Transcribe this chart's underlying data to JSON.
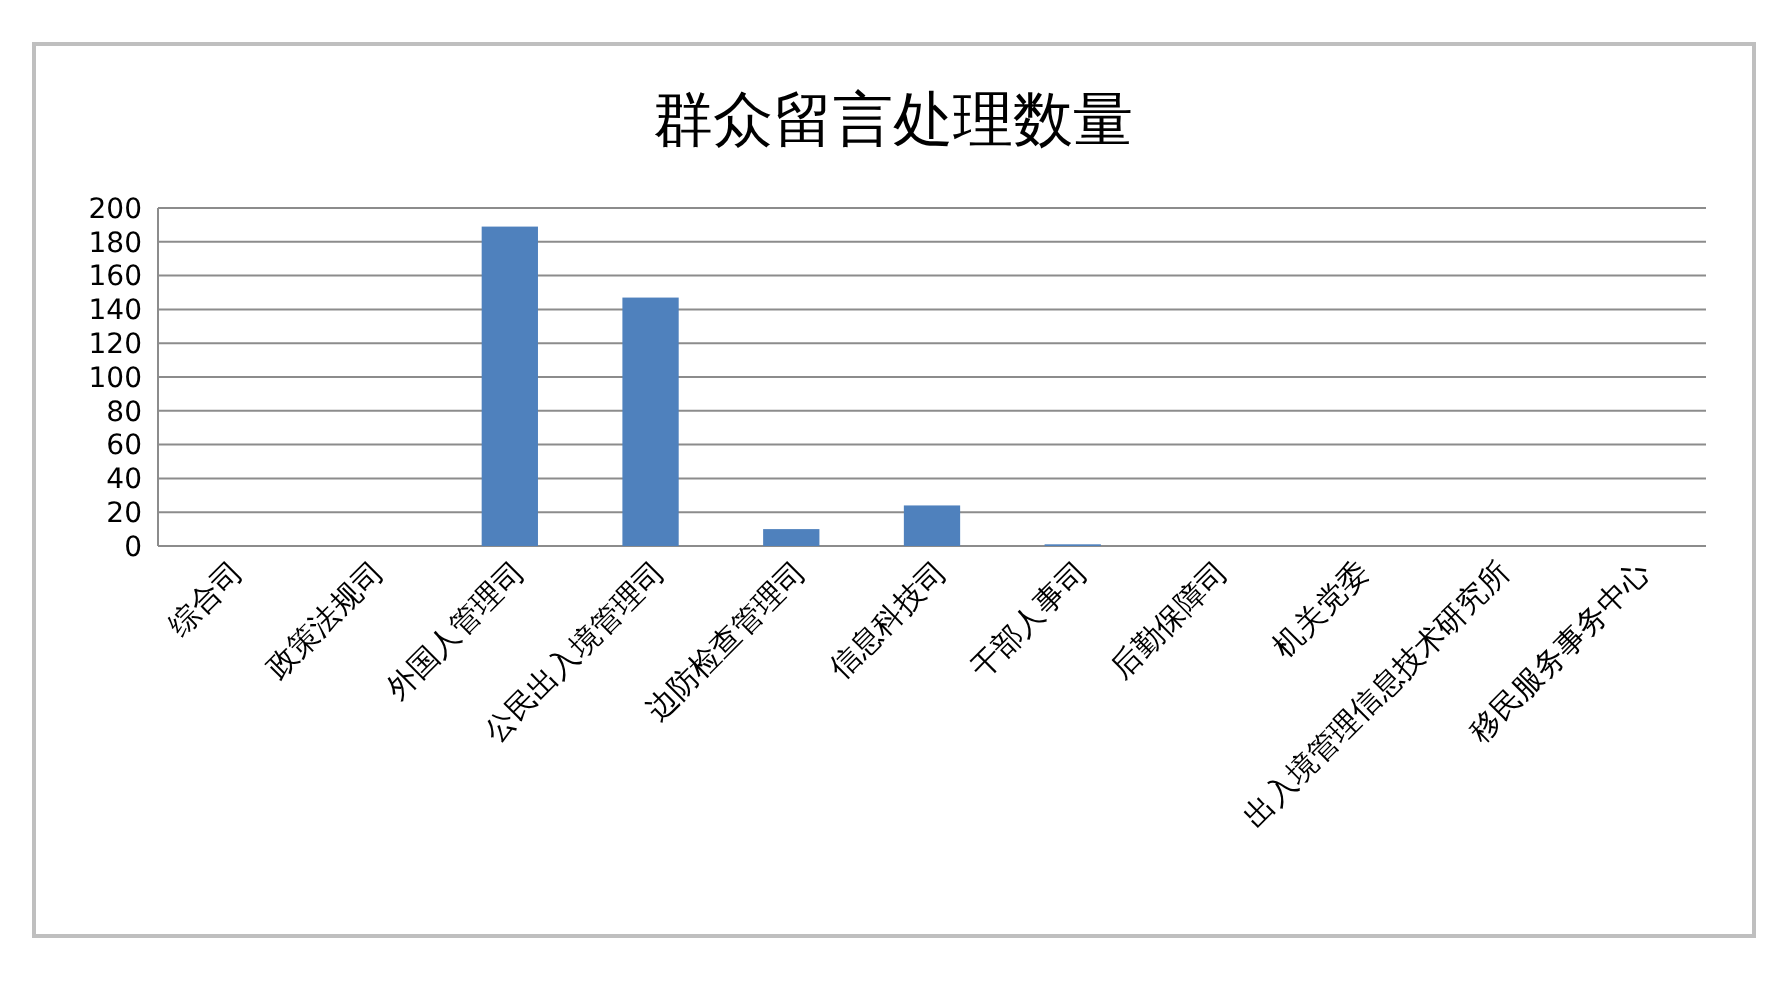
{
  "chart_data": {
    "type": "bar",
    "title": "群众留言处理数量",
    "categories": [
      "综合司",
      "政策法规司",
      "外国人管理司",
      "公民出入境管理司",
      "边防检查管理司",
      "信息科技司",
      "干部人事司",
      "后勤保障司",
      "机关党委",
      "出入境管理信息技术研究所",
      "移民服务事务中心"
    ],
    "values": [
      0,
      0,
      189,
      147,
      10,
      24,
      1,
      0,
      0,
      0,
      0
    ],
    "color": "#4f81bd",
    "ylim": [
      0,
      200
    ],
    "yticks": [
      0,
      20,
      40,
      60,
      80,
      100,
      120,
      140,
      160,
      180,
      200
    ],
    "grid": "y"
  }
}
